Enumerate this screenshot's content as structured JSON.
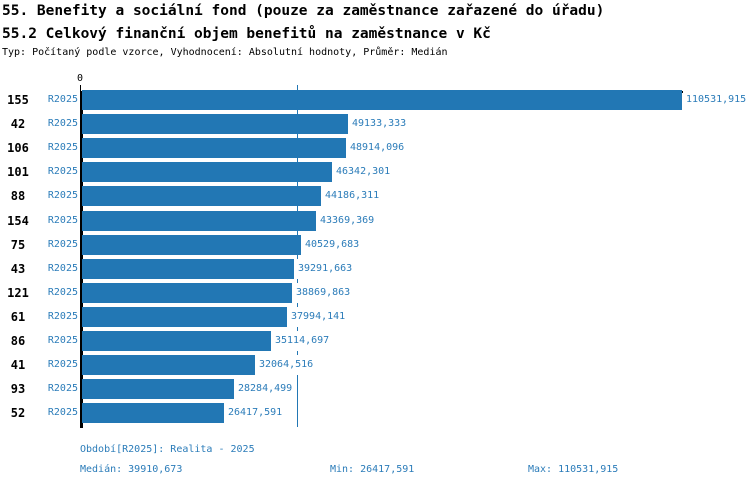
{
  "header": {
    "title_line1": "55. Benefity a sociální fond (pouze za zaměstnance zařazené do úřadu)",
    "title_line2": "55.2 Celkový finanční objem benefitů na zaměstnance v Kč",
    "meta": "Typ: Počítaný podle vzorce, Vyhodnocení: Absolutní hodnoty, Průměr: Medián"
  },
  "colors": {
    "bar": "#2277b4",
    "blue_text": "#2b7cb9",
    "axis": "#000000"
  },
  "chart_data": {
    "type": "bar",
    "orientation": "horizontal",
    "title": "55.2 Celkový finanční objem benefitů na zaměstnance v Kč",
    "series_label": "R2025",
    "categories": [
      "155",
      "42",
      "106",
      "101",
      "88",
      "154",
      "75",
      "43",
      "121",
      "61",
      "86",
      "41",
      "93",
      "52"
    ],
    "values": [
      110531.915,
      49133.333,
      48914.096,
      46342.301,
      44186.311,
      43369.369,
      40529.683,
      39291.663,
      38869.863,
      37994.141,
      35114.697,
      32064.516,
      28284.499,
      26417.591
    ],
    "value_labels": [
      "110531,915",
      "49133,333",
      "48914,096",
      "46342,301",
      "44186,311",
      "43369,369",
      "40529,683",
      "39291,663",
      "38869,863",
      "37994,141",
      "35114,697",
      "32064,516",
      "28284,499",
      "26417,591"
    ],
    "xlim": [
      0,
      110531.915
    ],
    "x_zero_label": "0",
    "median_line_value": 39910.673,
    "grid": false,
    "legend": "none"
  },
  "footer": {
    "period_line": "Období[R2025]: Realita - 2025",
    "median_label": "Medián: 39910,673",
    "min_label": "Min: 26417,591",
    "max_label": "Max: 110531,915"
  }
}
